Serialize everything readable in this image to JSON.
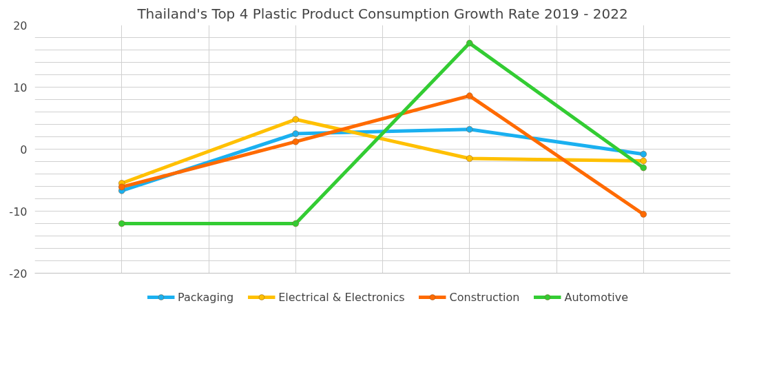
{
  "chart_data": {
    "type": "line",
    "title": "Thailand's Top 4 Plastic Product Consumption Growth Rate 2019 - 2022",
    "categories": [
      null,
      null,
      null,
      null
    ],
    "series": [
      {
        "name": "Packaging",
        "color": "#1ab0f0",
        "values": [
          -6.7,
          2.5,
          3.2,
          -0.8
        ]
      },
      {
        "name": "Electrical & Electronics",
        "color": "#ffc000",
        "values": [
          -5.5,
          4.8,
          -1.5,
          -1.9
        ]
      },
      {
        "name": "Construction",
        "color": "#ff6a00",
        "values": [
          -6.1,
          1.2,
          8.6,
          -10.5
        ]
      },
      {
        "name": "Automotive",
        "color": "#33cc33",
        "values": [
          -12.0,
          -12.0,
          17.1,
          -3.0
        ]
      }
    ],
    "ylim": [
      -20,
      20
    ],
    "yticks": [
      -20,
      {
        "value": -18,
        "label": null
      },
      {
        "value": -16,
        "label": null
      },
      {
        "value": -14,
        "label": null
      },
      {
        "value": -12,
        "label": null
      },
      -10,
      {
        "value": -8,
        "label": null
      },
      {
        "value": -6,
        "label": null
      },
      {
        "value": -4,
        "label": null
      },
      {
        "value": -2,
        "label": null
      },
      0,
      {
        "value": 2,
        "label": null
      },
      {
        "value": 4,
        "label": null
      },
      {
        "value": 6,
        "label": null
      },
      {
        "value": 8,
        "label": null
      },
      10,
      {
        "value": 12,
        "label": null
      },
      {
        "value": 14,
        "label": null
      },
      {
        "value": 16,
        "label": null
      },
      {
        "value": 18,
        "label": null
      },
      20
    ],
    "grid": true,
    "legend": "bottom",
    "marker": "circle",
    "line_style": "solid",
    "tick_labels": "y"
  }
}
